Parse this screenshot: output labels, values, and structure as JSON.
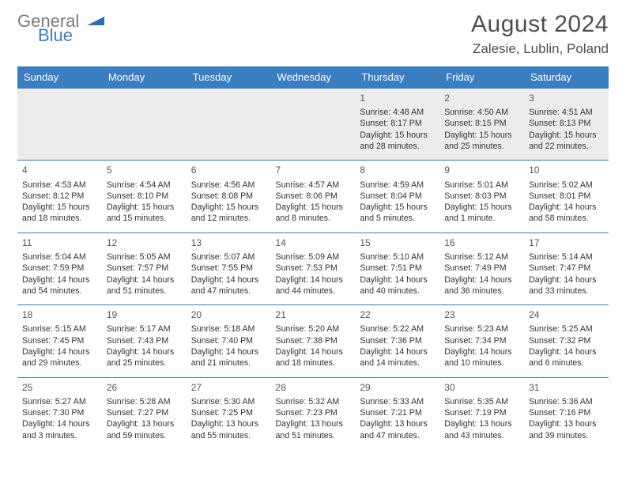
{
  "brand": {
    "word1": "General",
    "word2": "Blue"
  },
  "title": "August 2024",
  "subtitle": "Zalesie, Lublin, Poland",
  "colors": {
    "headerBg": "#3a7ec2",
    "headerText": "#ffffff",
    "rule": "#3a7ec2",
    "shade": "#ececec",
    "text": "#333333"
  },
  "dow": [
    "Sunday",
    "Monday",
    "Tuesday",
    "Wednesday",
    "Thursday",
    "Friday",
    "Saturday"
  ],
  "weeks": [
    [
      null,
      null,
      null,
      null,
      {
        "d": "1",
        "sr": "Sunrise: 4:48 AM",
        "ss": "Sunset: 8:17 PM",
        "dl": "Daylight: 15 hours and 28 minutes."
      },
      {
        "d": "2",
        "sr": "Sunrise: 4:50 AM",
        "ss": "Sunset: 8:15 PM",
        "dl": "Daylight: 15 hours and 25 minutes."
      },
      {
        "d": "3",
        "sr": "Sunrise: 4:51 AM",
        "ss": "Sunset: 8:13 PM",
        "dl": "Daylight: 15 hours and 22 minutes."
      }
    ],
    [
      {
        "d": "4",
        "sr": "Sunrise: 4:53 AM",
        "ss": "Sunset: 8:12 PM",
        "dl": "Daylight: 15 hours and 18 minutes."
      },
      {
        "d": "5",
        "sr": "Sunrise: 4:54 AM",
        "ss": "Sunset: 8:10 PM",
        "dl": "Daylight: 15 hours and 15 minutes."
      },
      {
        "d": "6",
        "sr": "Sunrise: 4:56 AM",
        "ss": "Sunset: 8:08 PM",
        "dl": "Daylight: 15 hours and 12 minutes."
      },
      {
        "d": "7",
        "sr": "Sunrise: 4:57 AM",
        "ss": "Sunset: 8:06 PM",
        "dl": "Daylight: 15 hours and 8 minutes."
      },
      {
        "d": "8",
        "sr": "Sunrise: 4:59 AM",
        "ss": "Sunset: 8:04 PM",
        "dl": "Daylight: 15 hours and 5 minutes."
      },
      {
        "d": "9",
        "sr": "Sunrise: 5:01 AM",
        "ss": "Sunset: 8:03 PM",
        "dl": "Daylight: 15 hours and 1 minute."
      },
      {
        "d": "10",
        "sr": "Sunrise: 5:02 AM",
        "ss": "Sunset: 8:01 PM",
        "dl": "Daylight: 14 hours and 58 minutes."
      }
    ],
    [
      {
        "d": "11",
        "sr": "Sunrise: 5:04 AM",
        "ss": "Sunset: 7:59 PM",
        "dl": "Daylight: 14 hours and 54 minutes."
      },
      {
        "d": "12",
        "sr": "Sunrise: 5:05 AM",
        "ss": "Sunset: 7:57 PM",
        "dl": "Daylight: 14 hours and 51 minutes."
      },
      {
        "d": "13",
        "sr": "Sunrise: 5:07 AM",
        "ss": "Sunset: 7:55 PM",
        "dl": "Daylight: 14 hours and 47 minutes."
      },
      {
        "d": "14",
        "sr": "Sunrise: 5:09 AM",
        "ss": "Sunset: 7:53 PM",
        "dl": "Daylight: 14 hours and 44 minutes."
      },
      {
        "d": "15",
        "sr": "Sunrise: 5:10 AM",
        "ss": "Sunset: 7:51 PM",
        "dl": "Daylight: 14 hours and 40 minutes."
      },
      {
        "d": "16",
        "sr": "Sunrise: 5:12 AM",
        "ss": "Sunset: 7:49 PM",
        "dl": "Daylight: 14 hours and 36 minutes."
      },
      {
        "d": "17",
        "sr": "Sunrise: 5:14 AM",
        "ss": "Sunset: 7:47 PM",
        "dl": "Daylight: 14 hours and 33 minutes."
      }
    ],
    [
      {
        "d": "18",
        "sr": "Sunrise: 5:15 AM",
        "ss": "Sunset: 7:45 PM",
        "dl": "Daylight: 14 hours and 29 minutes."
      },
      {
        "d": "19",
        "sr": "Sunrise: 5:17 AM",
        "ss": "Sunset: 7:43 PM",
        "dl": "Daylight: 14 hours and 25 minutes."
      },
      {
        "d": "20",
        "sr": "Sunrise: 5:18 AM",
        "ss": "Sunset: 7:40 PM",
        "dl": "Daylight: 14 hours and 21 minutes."
      },
      {
        "d": "21",
        "sr": "Sunrise: 5:20 AM",
        "ss": "Sunset: 7:38 PM",
        "dl": "Daylight: 14 hours and 18 minutes."
      },
      {
        "d": "22",
        "sr": "Sunrise: 5:22 AM",
        "ss": "Sunset: 7:36 PM",
        "dl": "Daylight: 14 hours and 14 minutes."
      },
      {
        "d": "23",
        "sr": "Sunrise: 5:23 AM",
        "ss": "Sunset: 7:34 PM",
        "dl": "Daylight: 14 hours and 10 minutes."
      },
      {
        "d": "24",
        "sr": "Sunrise: 5:25 AM",
        "ss": "Sunset: 7:32 PM",
        "dl": "Daylight: 14 hours and 6 minutes."
      }
    ],
    [
      {
        "d": "25",
        "sr": "Sunrise: 5:27 AM",
        "ss": "Sunset: 7:30 PM",
        "dl": "Daylight: 14 hours and 3 minutes."
      },
      {
        "d": "26",
        "sr": "Sunrise: 5:28 AM",
        "ss": "Sunset: 7:27 PM",
        "dl": "Daylight: 13 hours and 59 minutes."
      },
      {
        "d": "27",
        "sr": "Sunrise: 5:30 AM",
        "ss": "Sunset: 7:25 PM",
        "dl": "Daylight: 13 hours and 55 minutes."
      },
      {
        "d": "28",
        "sr": "Sunrise: 5:32 AM",
        "ss": "Sunset: 7:23 PM",
        "dl": "Daylight: 13 hours and 51 minutes."
      },
      {
        "d": "29",
        "sr": "Sunrise: 5:33 AM",
        "ss": "Sunset: 7:21 PM",
        "dl": "Daylight: 13 hours and 47 minutes."
      },
      {
        "d": "30",
        "sr": "Sunrise: 5:35 AM",
        "ss": "Sunset: 7:19 PM",
        "dl": "Daylight: 13 hours and 43 minutes."
      },
      {
        "d": "31",
        "sr": "Sunrise: 5:36 AM",
        "ss": "Sunset: 7:16 PM",
        "dl": "Daylight: 13 hours and 39 minutes."
      }
    ]
  ]
}
